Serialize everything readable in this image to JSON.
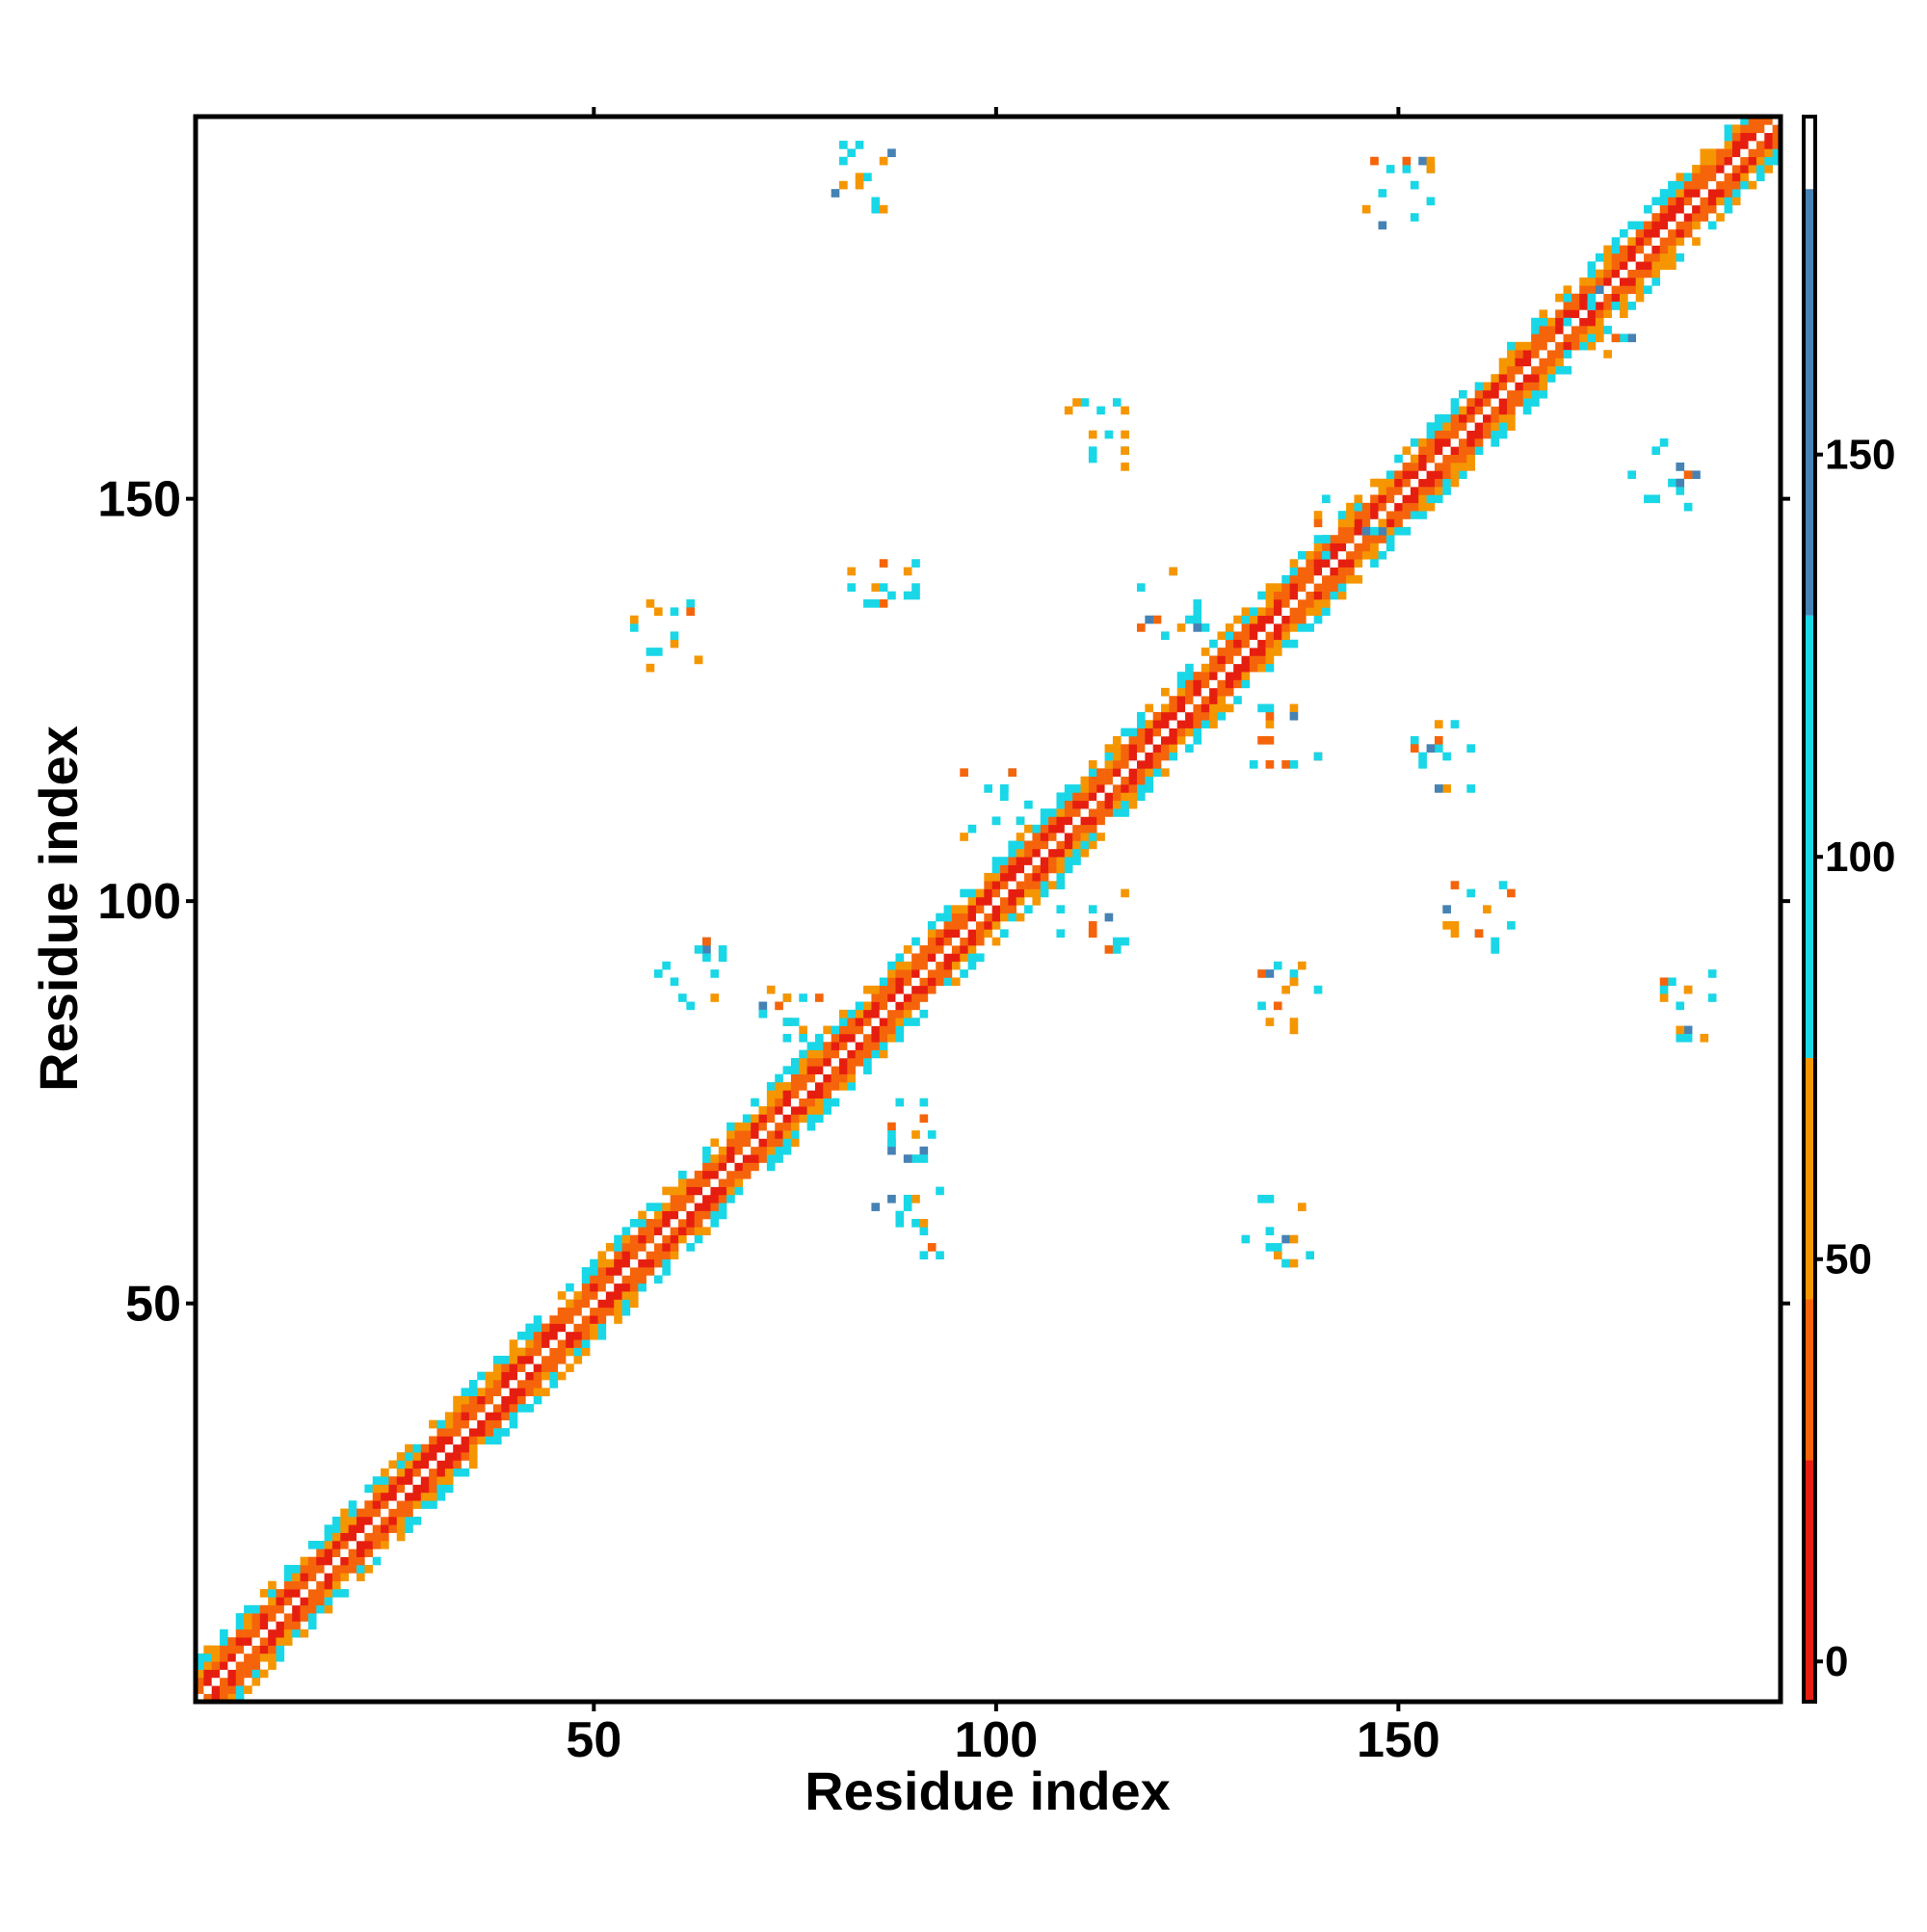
{
  "chart_data": {
    "type": "heatmap",
    "title": "",
    "xlabel": "Residue index",
    "ylabel": "Residue index",
    "xlim": [
      1,
      197
    ],
    "ylim": [
      1,
      197
    ],
    "x_ticks": [
      50,
      100,
      150
    ],
    "y_ticks": [
      50,
      100,
      150
    ],
    "grid": false,
    "colorbar": {
      "placement": "right",
      "range": [
        -5,
        192
      ],
      "ticks": [
        0,
        50,
        100,
        150
      ],
      "bands": [
        {
          "from": -5,
          "to": 25,
          "color": "#e61e0f"
        },
        {
          "from": 25,
          "to": 45,
          "color": "#f5640a"
        },
        {
          "from": 45,
          "to": 75,
          "color": "#f59600"
        },
        {
          "from": 75,
          "to": 130,
          "color": "#19d7e6"
        },
        {
          "from": 130,
          "to": 183,
          "color": "#4682b4"
        },
        {
          "from": 183,
          "to": 192,
          "color": "#ffffff"
        }
      ]
    },
    "diagonal_band": {
      "residue_start": 1,
      "residue_end": 197,
      "half_width_residues": 5
    },
    "off_diagonal_contact_clusters": [
      {
        "x": 59,
        "y": 133
      },
      {
        "x": 86,
        "y": 138
      },
      {
        "x": 62,
        "y": 91
      },
      {
        "x": 89,
        "y": 60
      },
      {
        "x": 84,
        "y": 190
      },
      {
        "x": 150,
        "y": 188
      },
      {
        "x": 112,
        "y": 158
      },
      {
        "x": 136,
        "y": 88
      },
      {
        "x": 135,
        "y": 59
      },
      {
        "x": 156,
        "y": 118
      },
      {
        "x": 186,
        "y": 87
      },
      {
        "x": 183,
        "y": 153
      },
      {
        "x": 100,
        "y": 112
      },
      {
        "x": 112,
        "y": 98
      },
      {
        "x": 122,
        "y": 137
      },
      {
        "x": 136,
        "y": 120
      },
      {
        "x": 90,
        "y": 72
      },
      {
        "x": 75,
        "y": 85
      },
      {
        "x": 160,
        "y": 98
      },
      {
        "x": 144,
        "y": 146
      },
      {
        "x": 175,
        "y": 172
      }
    ]
  }
}
